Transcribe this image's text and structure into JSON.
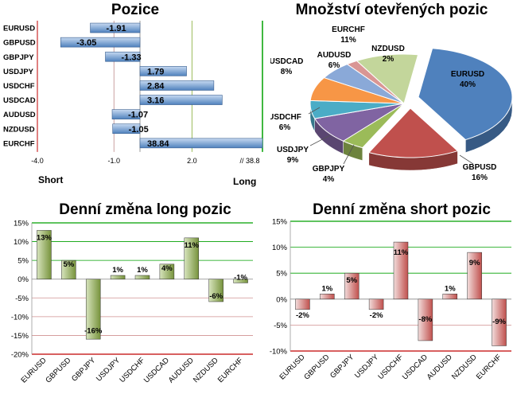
{
  "chart_data": [
    {
      "type": "bar",
      "orientation": "horizontal",
      "title": "Pozice",
      "categories": [
        "EURUSD",
        "GBPUSD",
        "GBPJPY",
        "USDJPY",
        "USDCHF",
        "USDCAD",
        "AUDUSD",
        "NZDUSD",
        "EURCHF"
      ],
      "values": [
        -1.91,
        -3.05,
        -1.33,
        1.79,
        2.84,
        3.16,
        -1.07,
        -1.05,
        38.84
      ],
      "value_labels": [
        "-1.91",
        "-3.05",
        "-1.33",
        "1.79",
        "2.84",
        "3.16",
        "-1.07",
        "-1.05",
        "38.84"
      ],
      "x_ticks": [
        "-4.0",
        "-1.0",
        "2.0",
        "// 38.8"
      ],
      "left_label": "Short",
      "right_label": "Long",
      "axis_break": true,
      "colors": {
        "bar": "#4f81bd",
        "bar_light": "#c6d9f1",
        "left_line": "#c00000",
        "right_line": "#00a000",
        "grid": "#9bbb59"
      }
    },
    {
      "type": "pie",
      "title": "Množství otevřených pozic",
      "slices": [
        {
          "label": "EURUSD",
          "value": 40,
          "text": "40%",
          "color": "#4f81bd"
        },
        {
          "label": "GBPUSD",
          "value": 16,
          "text": "16%",
          "color": "#c0504d"
        },
        {
          "label": "GBPJPY",
          "value": 4,
          "text": "4%",
          "color": "#9bbb59"
        },
        {
          "label": "USDJPY",
          "value": 9,
          "text": "9%",
          "color": "#8064a2"
        },
        {
          "label": "USDCHF",
          "value": 6,
          "text": "6%",
          "color": "#4bacc6"
        },
        {
          "label": "USDCAD",
          "value": 8,
          "text": "8%",
          "color": "#f79646"
        },
        {
          "label": "AUDUSD",
          "value": 6,
          "text": "6%",
          "color": "#8aa9d8"
        },
        {
          "label": "NZDUSD",
          "value": 2,
          "text": "2%",
          "color": "#d99694"
        },
        {
          "label": "EURCHF",
          "value": 11,
          "text": "11%",
          "color": "#c3d69b"
        }
      ]
    },
    {
      "type": "bar",
      "title": "Denní změna long pozic",
      "categories": [
        "EURUSD",
        "GBPUSD",
        "GBPJPY",
        "USDJPY",
        "USDCHF",
        "USDCAD",
        "AUDUSD",
        "NZDUSD",
        "EURCHF"
      ],
      "values": [
        13,
        5,
        -16,
        1,
        1,
        4,
        11,
        -6,
        -1
      ],
      "value_labels": [
        "13%",
        "5%",
        "-16%",
        "1%",
        "1%",
        "4%",
        "11%",
        "-6%",
        "-1%"
      ],
      "ylim": [
        -20,
        15
      ],
      "y_ticks": [
        "15%",
        "10%",
        "5%",
        "0%",
        "-5%",
        "-10%",
        "-15%",
        "-20%"
      ],
      "colors": {
        "bar": "#77933c",
        "bar_light": "#d7e4bd",
        "grid": "#00a000",
        "bottom_line": "#c00000"
      }
    },
    {
      "type": "bar",
      "title": "Denní změna short pozic",
      "categories": [
        "EURUSD",
        "GBPUSD",
        "GBPJPY",
        "USDJPY",
        "USDCHF",
        "USDCAD",
        "AUDUSD",
        "NZDUSD",
        "EURCHF"
      ],
      "values": [
        -2,
        1,
        5,
        -2,
        11,
        -8,
        1,
        9,
        -9
      ],
      "value_labels": [
        "-2%",
        "1%",
        "5%",
        "-2%",
        "11%",
        "-8%",
        "1%",
        "9%",
        "-9%"
      ],
      "ylim": [
        -10,
        15
      ],
      "y_ticks": [
        "15%",
        "10%",
        "5%",
        "0%",
        "-5%",
        "-10%"
      ],
      "colors": {
        "bar": "#c0504d",
        "bar_light": "#f2dcdb",
        "grid": "#00a000",
        "bottom_line": "#c00000"
      }
    }
  ]
}
